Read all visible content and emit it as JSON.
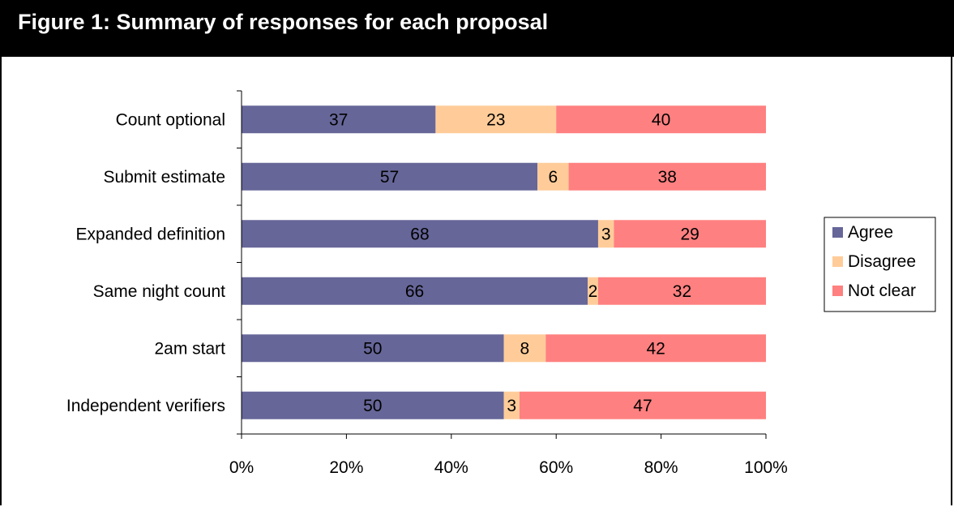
{
  "figure": {
    "title": "Figure 1: Summary of responses for each proposal"
  },
  "chart_data": {
    "type": "bar",
    "orientation": "horizontal",
    "stacked": "percent",
    "categories": [
      "Count optional",
      "Submit estimate",
      "Expanded definition",
      "Same night count",
      "2am start",
      "Independent verifiers"
    ],
    "series": [
      {
        "name": "Agree",
        "color": "#666699",
        "values": [
          37,
          57,
          68,
          66,
          50,
          50
        ]
      },
      {
        "name": "Disagree",
        "color": "#FFCC99",
        "values": [
          23,
          6,
          3,
          2,
          8,
          3
        ]
      },
      {
        "name": "Not clear",
        "color": "#FF8080",
        "values": [
          40,
          38,
          29,
          32,
          42,
          47
        ]
      }
    ],
    "xlim": [
      0,
      100
    ],
    "xticks": [
      "0%",
      "20%",
      "40%",
      "60%",
      "80%",
      "100%"
    ],
    "grid": false,
    "legend": "right"
  }
}
